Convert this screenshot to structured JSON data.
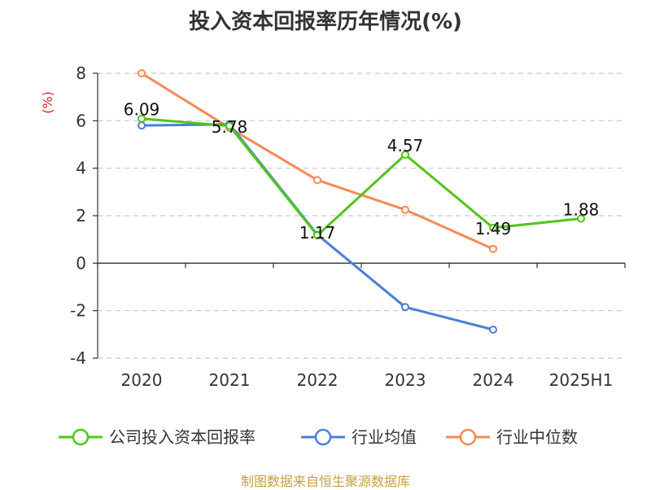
{
  "title": "投入资本回报率历年情况(%)",
  "source": "制图数据来自恒生聚源数据库",
  "chart_data": {
    "type": "line",
    "title": "投入资本回报率历年情况(%)",
    "ylabel": "(%)",
    "xlabel": "",
    "categories": [
      "2020",
      "2021",
      "2022",
      "2023",
      "2024",
      "2025H1"
    ],
    "ylim": [
      -4,
      8
    ],
    "yticks": [
      -4,
      -2,
      0,
      2,
      4,
      6,
      8
    ],
    "grid": true,
    "legend_position": "bottom",
    "series": [
      {
        "name": "公司投入资本回报率",
        "color": "#52c41a",
        "values": [
          6.09,
          5.78,
          1.17,
          4.57,
          1.49,
          1.88
        ],
        "labels": [
          "6.09",
          "5.78",
          "1.17",
          "4.57",
          "1.49",
          "1.88"
        ]
      },
      {
        "name": "行业均值",
        "color": "#4a7fd8",
        "values": [
          5.8,
          5.85,
          1.2,
          -1.85,
          -2.8,
          null
        ]
      },
      {
        "name": "行业中位数",
        "color": "#f58a55",
        "values": [
          8.0,
          5.7,
          3.5,
          2.25,
          0.6,
          null
        ]
      }
    ]
  }
}
